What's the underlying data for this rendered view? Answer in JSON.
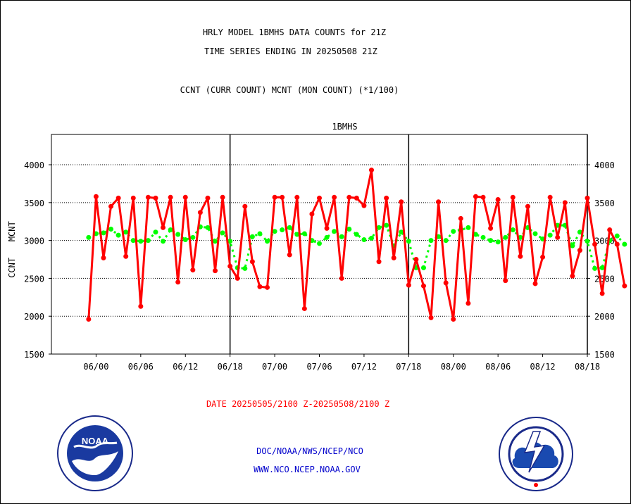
{
  "header": {
    "title_line1": "HRLY MODEL 1BMHS DATA COUNTS for 21Z",
    "title_line2": "TIME SERIES ENDING IN 20250508 21Z",
    "subtitle": "CCNT (CURR COUNT) MCNT (MON COUNT) (*1/100)"
  },
  "footer": {
    "date_range": "DATE 20250505/2100 Z-20250508/2100 Z",
    "org_path": "DOC/NOAA/NWS/NCEP/NCO",
    "website": "WWW.NCO.NCEP.NOAA.GOV"
  },
  "logos": {
    "left": {
      "icon": "noaa-logo",
      "text": "NOAA"
    },
    "right": {
      "icon": "nws-logo"
    }
  },
  "colors": {
    "ccnt": "#ff0000",
    "mcnt": "#00ff00",
    "label_blue": "#0000cc",
    "date_red": "#ff0000"
  },
  "chart_data": {
    "type": "line",
    "title": "1BMHS",
    "ylabel_left": "CCNT",
    "ylabel_right": "MCNT",
    "ylim": [
      1500,
      4400
    ],
    "yticks": [
      1500,
      2000,
      2500,
      3000,
      3500,
      4000
    ],
    "ytick_labels": [
      "1500",
      "2000",
      "2500",
      "3000",
      "3500",
      "4000"
    ],
    "xlim": [
      -5,
      67
    ],
    "xticks": [
      1,
      7,
      13,
      19,
      25,
      31,
      37,
      43,
      49,
      55,
      61,
      67
    ],
    "xtick_labels": [
      "06/00",
      "06/06",
      "06/12",
      "06/18",
      "07/00",
      "07/06",
      "07/12",
      "07/18",
      "08/00",
      "08/06",
      "08/12",
      "08/18"
    ],
    "day_boundaries": [
      19,
      43,
      67
    ],
    "grid": "horizontal dotted",
    "series": [
      {
        "name": "CCNT",
        "values": [
          1960,
          3580,
          2770,
          3450,
          3560,
          2790,
          3560,
          2130,
          3570,
          3560,
          3170,
          3570,
          2450,
          3570,
          2610,
          3370,
          3560,
          2600,
          3570,
          2660,
          2500,
          3450,
          2720,
          2390,
          2380,
          3570,
          3570,
          2810,
          3570,
          2100,
          3350,
          3560,
          3160,
          3570,
          2500,
          3570,
          3560,
          3460,
          3930,
          2720,
          3560,
          2770,
          3510,
          2410,
          2750,
          2400,
          1980,
          3510,
          2440,
          1960,
          3290,
          2170,
          3580,
          3570,
          3160,
          3540,
          2470,
          3570,
          2790,
          3450,
          2430,
          2780,
          3570,
          3040,
          3500,
          2530,
          2870,
          3560,
          2950,
          2300,
          3140,
          2950,
          2400
        ]
      },
      {
        "name": "MCNT",
        "values": [
          3040,
          3090,
          3100,
          3150,
          3070,
          3110,
          3000,
          2990,
          3000,
          3110,
          2990,
          3140,
          3080,
          3010,
          3040,
          3180,
          3170,
          2990,
          3100,
          2990,
          2640,
          2630,
          3050,
          3090,
          2990,
          3120,
          3140,
          3170,
          3080,
          3090,
          3000,
          2960,
          3040,
          3120,
          3050,
          3150,
          3080,
          3010,
          3030,
          3170,
          3200,
          2930,
          3110,
          2990,
          2640,
          2640,
          3000,
          3050,
          3000,
          3120,
          3140,
          3170,
          3080,
          3040,
          3000,
          2980,
          3040,
          3140,
          3040,
          3170,
          3090,
          3020,
          3070,
          3200,
          3200,
          2930,
          3110,
          2990,
          2630,
          2640,
          3000,
          3060,
          2950
        ]
      }
    ]
  }
}
